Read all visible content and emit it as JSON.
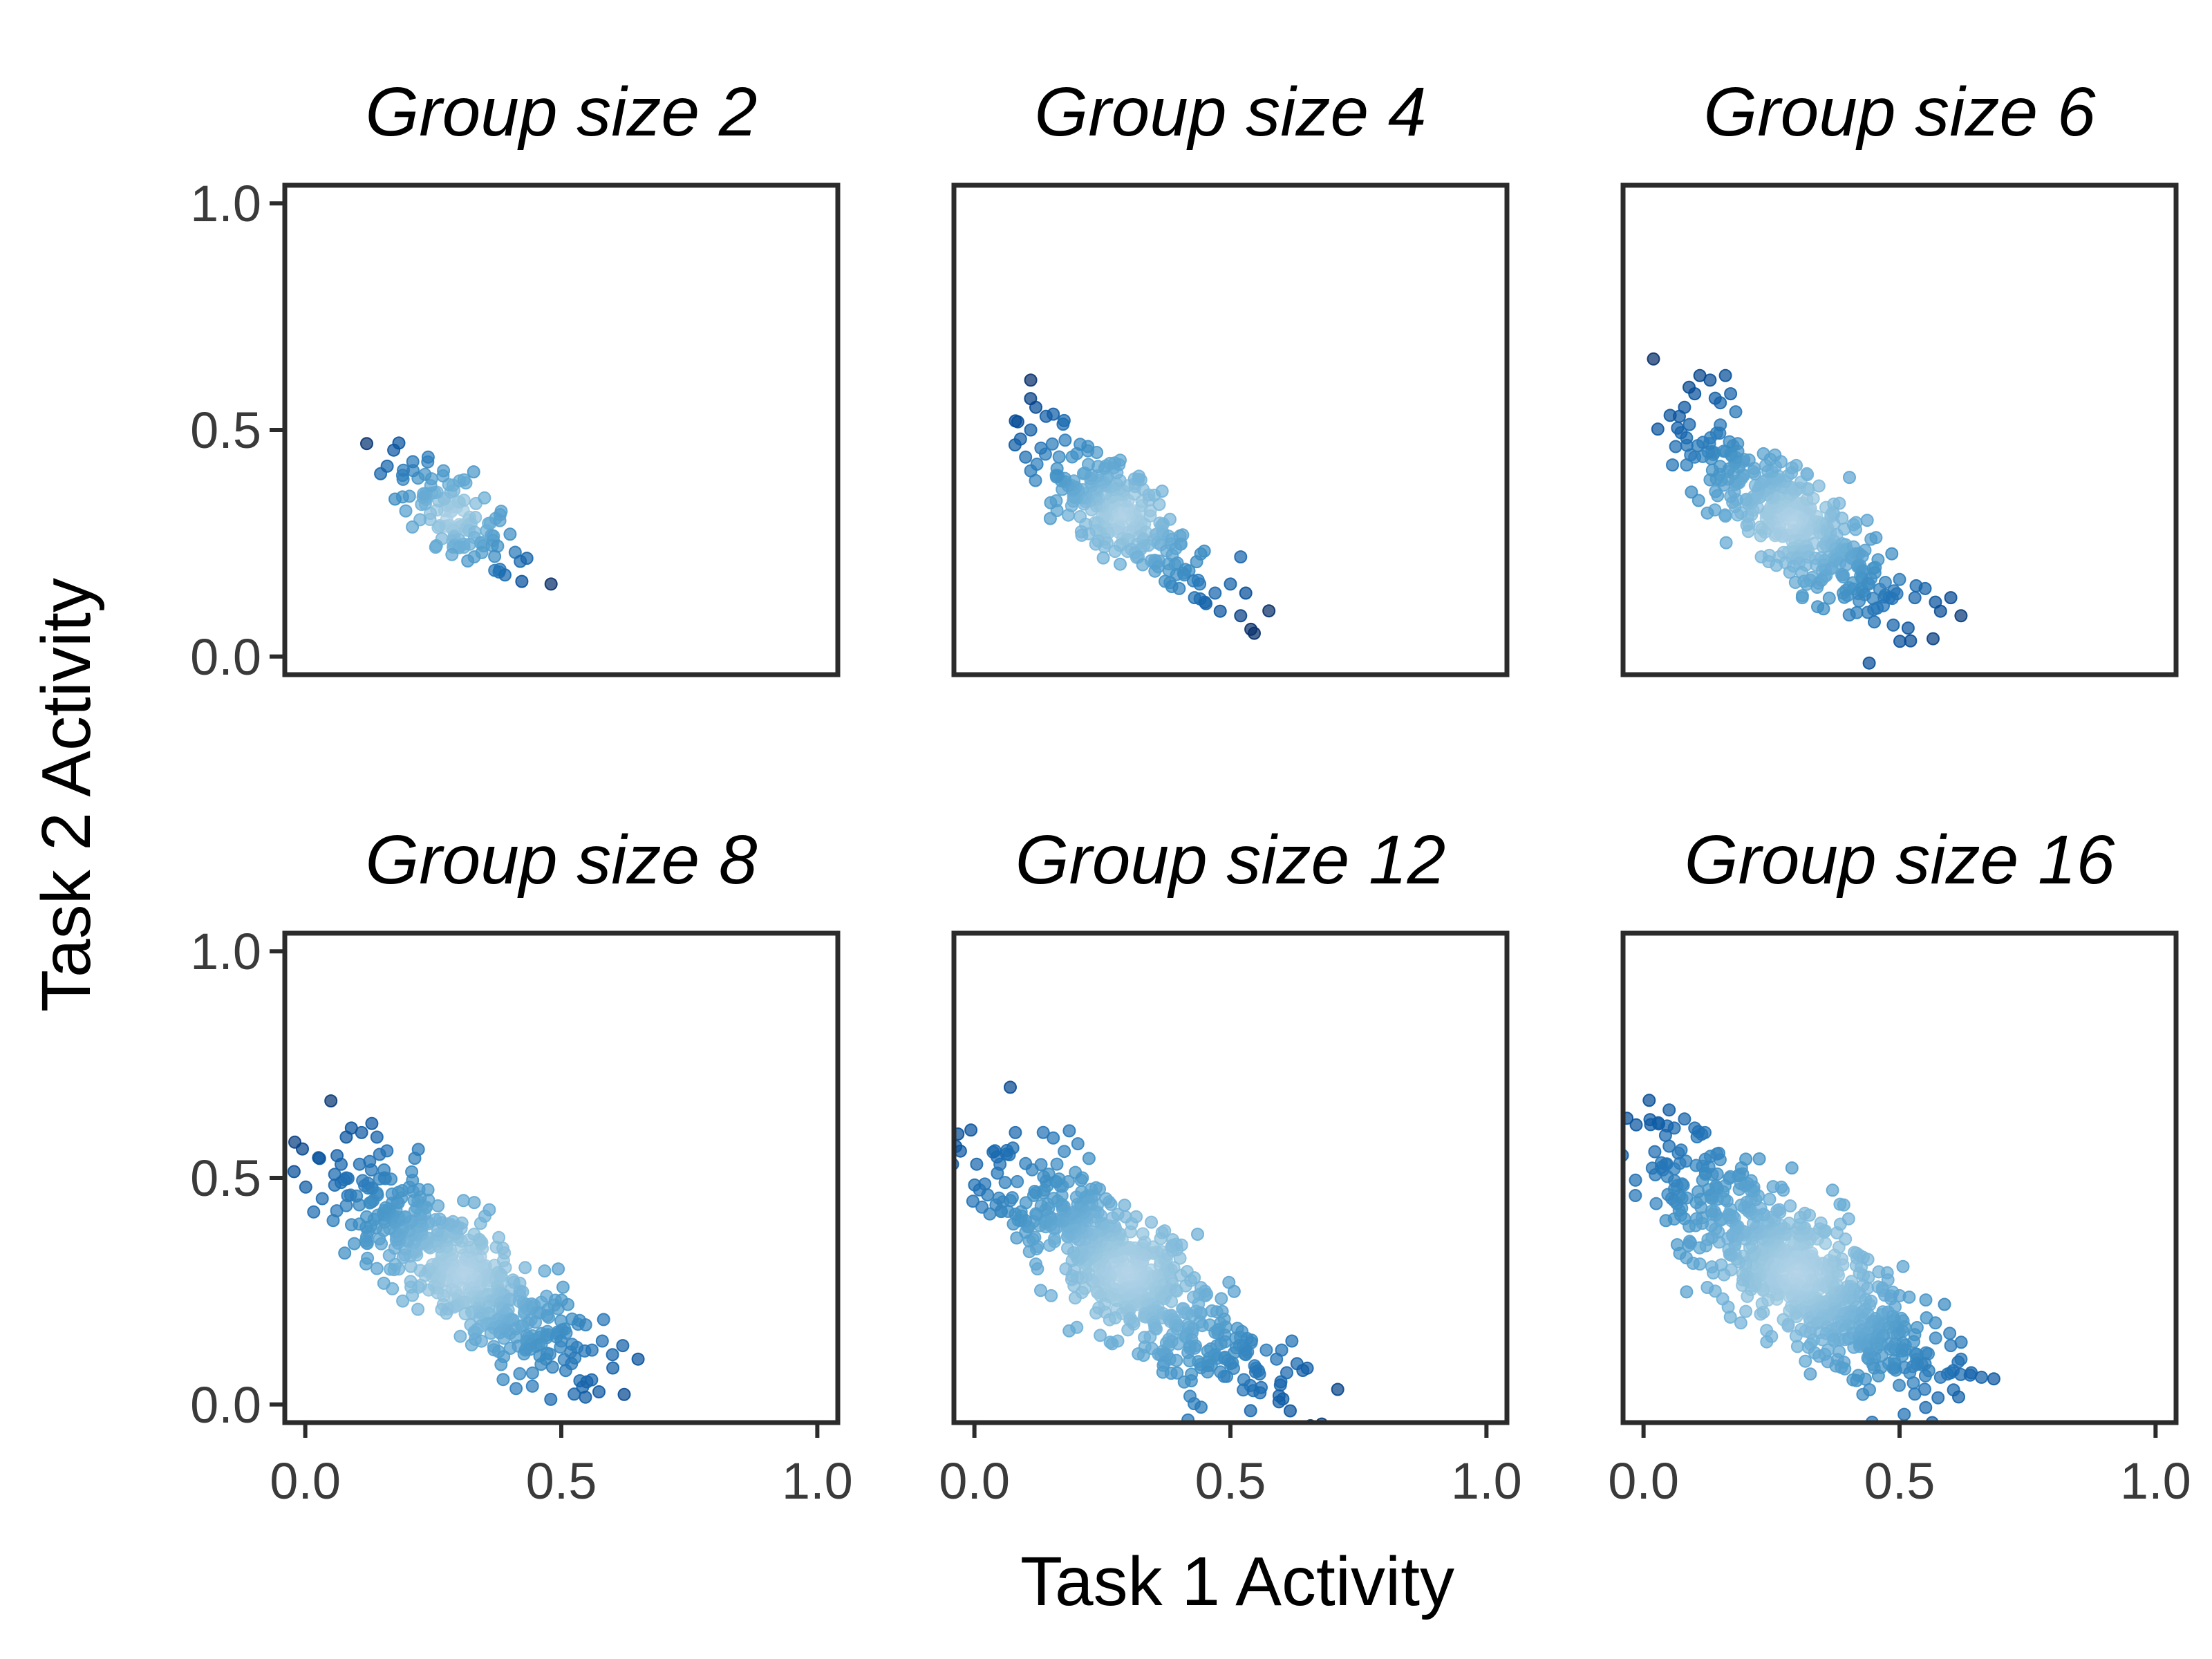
{
  "chart_data": {
    "type": "scatter",
    "xlabel": "Task 1 Activity",
    "ylabel": "Task 2 Activity",
    "xlim": [
      -0.04,
      1.04
    ],
    "ylim": [
      -0.04,
      1.04
    ],
    "xticks": [
      0.0,
      0.5,
      1.0
    ],
    "yticks": [
      0.0,
      0.5,
      1.0
    ],
    "xtick_labels": [
      "0.0",
      "0.5",
      "1.0"
    ],
    "ytick_labels": [
      "0.0",
      "0.5",
      "1.0"
    ],
    "grid": false,
    "colormap": [
      "#c6dbef",
      "#9ecae1",
      "#6baed6",
      "#4292c6",
      "#2171b5",
      "#08519c",
      "#08306b"
    ],
    "panels": [
      {
        "title": "Group size 2",
        "cluster": {
          "cx": 0.29,
          "cy": 0.31,
          "spread_along": 0.075,
          "spread_across": 0.032,
          "n": 110
        },
        "points": [
          [
            0.12,
            0.47
          ],
          [
            0.16,
            0.42
          ],
          [
            0.19,
            0.4
          ],
          [
            0.21,
            0.43
          ],
          [
            0.24,
            0.44
          ],
          [
            0.27,
            0.41
          ],
          [
            0.31,
            0.39
          ],
          [
            0.35,
            0.35
          ],
          [
            0.38,
            0.3
          ],
          [
            0.4,
            0.27
          ],
          [
            0.41,
            0.23
          ],
          [
            0.42,
            0.21
          ],
          [
            0.37,
            0.19
          ],
          [
            0.39,
            0.18
          ],
          [
            0.33,
            0.22
          ],
          [
            0.3,
            0.24
          ],
          [
            0.48,
            0.16
          ]
        ]
      },
      {
        "title": "Group size 4",
        "cluster": {
          "cx": 0.29,
          "cy": 0.31,
          "spread_along": 0.11,
          "spread_across": 0.04,
          "n": 260
        },
        "points": [
          [
            0.08,
            0.52
          ],
          [
            0.09,
            0.48
          ],
          [
            0.11,
            0.61
          ],
          [
            0.12,
            0.55
          ],
          [
            0.11,
            0.5
          ],
          [
            0.14,
            0.53
          ],
          [
            0.13,
            0.46
          ],
          [
            0.1,
            0.44
          ],
          [
            0.16,
            0.4
          ],
          [
            0.2,
            0.35
          ],
          [
            0.25,
            0.33
          ],
          [
            0.33,
            0.26
          ],
          [
            0.38,
            0.19
          ],
          [
            0.4,
            0.15
          ],
          [
            0.43,
            0.13
          ],
          [
            0.44,
            0.16
          ],
          [
            0.45,
            0.12
          ],
          [
            0.47,
            0.14
          ],
          [
            0.48,
            0.1
          ],
          [
            0.5,
            0.16
          ],
          [
            0.52,
            0.22
          ],
          [
            0.53,
            0.14
          ],
          [
            0.52,
            0.09
          ],
          [
            0.54,
            0.06
          ],
          [
            0.41,
            0.18
          ]
        ]
      },
      {
        "title": "Group size 6",
        "cluster": {
          "cx": 0.29,
          "cy": 0.3,
          "spread_along": 0.13,
          "spread_across": 0.045,
          "n": 400
        },
        "points": [
          [
            0.07,
            0.53
          ],
          [
            0.08,
            0.55
          ],
          [
            0.1,
            0.58
          ],
          [
            0.11,
            0.62
          ],
          [
            0.13,
            0.61
          ],
          [
            0.16,
            0.62
          ],
          [
            0.14,
            0.57
          ],
          [
            0.17,
            0.58
          ],
          [
            0.15,
            0.56
          ],
          [
            0.18,
            0.54
          ],
          [
            0.1,
            0.44
          ],
          [
            0.13,
            0.39
          ],
          [
            0.16,
            0.31
          ],
          [
            0.23,
            0.22
          ],
          [
            0.31,
            0.13
          ],
          [
            0.34,
            0.11
          ],
          [
            0.39,
            0.14
          ],
          [
            0.44,
            0.16
          ],
          [
            0.48,
            0.13
          ],
          [
            0.53,
            0.13
          ],
          [
            0.55,
            0.15
          ],
          [
            0.57,
            0.12
          ],
          [
            0.6,
            0.13
          ],
          [
            0.62,
            0.09
          ],
          [
            0.58,
            0.1
          ],
          [
            0.5,
            0.17
          ]
        ]
      },
      {
        "title": "Group size 8",
        "cluster": {
          "cx": 0.31,
          "cy": 0.29,
          "spread_along": 0.15,
          "spread_across": 0.05,
          "n": 520
        },
        "points": [
          [
            0.05,
            0.67
          ],
          [
            0.08,
            0.59
          ],
          [
            0.09,
            0.61
          ],
          [
            0.11,
            0.6
          ],
          [
            0.13,
            0.62
          ],
          [
            0.14,
            0.59
          ],
          [
            0.07,
            0.53
          ],
          [
            0.07,
            0.49
          ],
          [
            0.08,
            0.5
          ],
          [
            0.1,
            0.46
          ],
          [
            0.12,
            0.37
          ],
          [
            0.14,
            0.3
          ],
          [
            0.22,
            0.21
          ],
          [
            0.33,
            0.16
          ],
          [
            0.43,
            0.12
          ],
          [
            0.47,
            0.1
          ],
          [
            0.5,
            0.14
          ],
          [
            0.52,
            0.09
          ],
          [
            0.55,
            0.05
          ],
          [
            0.56,
            0.12
          ],
          [
            0.58,
            0.14
          ],
          [
            0.6,
            0.11
          ],
          [
            0.62,
            0.13
          ],
          [
            0.65,
            0.1
          ]
        ]
      },
      {
        "title": "Group size 12",
        "cluster": {
          "cx": 0.3,
          "cy": 0.29,
          "spread_along": 0.17,
          "spread_across": 0.055,
          "n": 640
        },
        "points": [
          [
            0.07,
            0.7
          ],
          [
            0.08,
            0.6
          ],
          [
            0.04,
            0.56
          ],
          [
            0.05,
            0.53
          ],
          [
            0.06,
            0.49
          ],
          [
            0.07,
            0.45
          ],
          [
            0.08,
            0.42
          ],
          [
            0.1,
            0.38
          ],
          [
            0.12,
            0.31
          ],
          [
            0.15,
            0.24
          ],
          [
            0.2,
            0.17
          ],
          [
            0.28,
            0.14
          ],
          [
            0.38,
            0.13
          ],
          [
            0.47,
            0.11
          ],
          [
            0.5,
            0.09
          ],
          [
            0.53,
            0.11
          ],
          [
            0.55,
            0.08
          ],
          [
            0.57,
            0.12
          ],
          [
            0.59,
            0.1
          ],
          [
            0.61,
            0.07
          ],
          [
            0.63,
            0.09
          ],
          [
            0.65,
            0.08
          ],
          [
            0.62,
            0.14
          ],
          [
            0.6,
            0.12
          ]
        ]
      },
      {
        "title": "Group size 16",
        "cluster": {
          "cx": 0.3,
          "cy": 0.29,
          "spread_along": 0.18,
          "spread_across": 0.06,
          "n": 760
        },
        "points": [
          [
            0.05,
            0.65
          ],
          [
            0.06,
            0.61
          ],
          [
            0.08,
            0.63
          ],
          [
            0.1,
            0.61
          ],
          [
            0.12,
            0.6
          ],
          [
            0.05,
            0.57
          ],
          [
            0.06,
            0.52
          ],
          [
            0.07,
            0.46
          ],
          [
            0.08,
            0.41
          ],
          [
            0.09,
            0.36
          ],
          [
            0.11,
            0.31
          ],
          [
            0.14,
            0.25
          ],
          [
            0.19,
            0.18
          ],
          [
            0.25,
            0.15
          ],
          [
            0.36,
            0.12
          ],
          [
            0.44,
            0.1
          ],
          [
            0.49,
            0.08
          ],
          [
            0.52,
            0.07
          ],
          [
            0.55,
            0.09
          ],
          [
            0.58,
            0.06
          ],
          [
            0.6,
            0.07
          ],
          [
            0.62,
            0.1
          ],
          [
            0.64,
            0.07
          ],
          [
            0.66,
            0.06
          ],
          [
            0.6,
            0.13
          ],
          [
            0.57,
            0.18
          ],
          [
            0.5,
            0.24
          ]
        ]
      }
    ]
  }
}
